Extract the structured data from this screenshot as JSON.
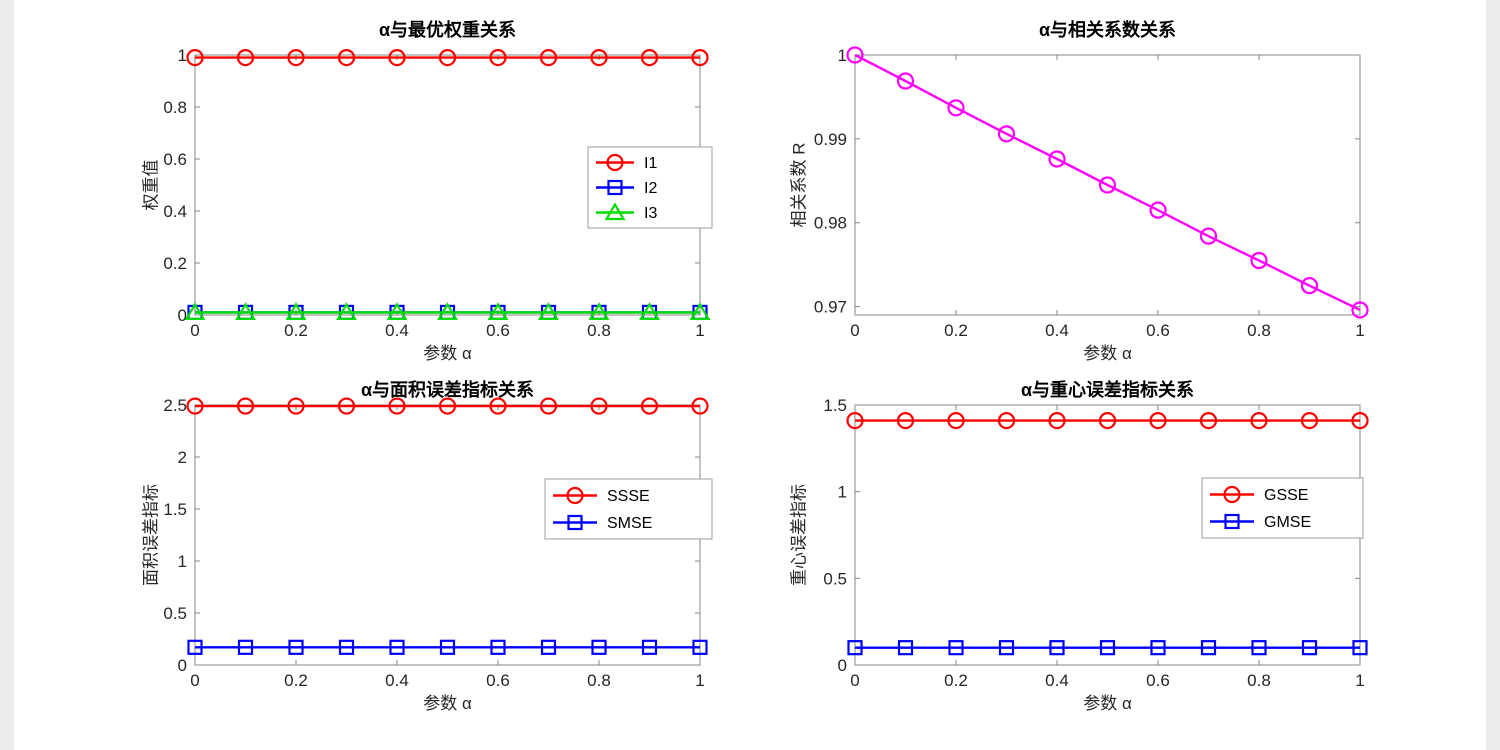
{
  "figure": {
    "background": "#ffffff",
    "edge_color": "#ececec"
  },
  "chart_data": [
    {
      "type": "line",
      "title": "α与最优权重关系",
      "xlabel": "参数 α",
      "ylabel": "权重值",
      "xlim": [
        0,
        1
      ],
      "ylim": [
        0,
        1
      ],
      "xticks": [
        0,
        0.2,
        0.4,
        0.6,
        0.8,
        1
      ],
      "yticks": [
        0,
        0.2,
        0.4,
        0.6,
        0.8,
        1
      ],
      "x": [
        0,
        0.1,
        0.2,
        0.3,
        0.4,
        0.5,
        0.6,
        0.7,
        0.8,
        0.9,
        1
      ],
      "legend_position": "right-center",
      "series": [
        {
          "name": "I1",
          "color": "#ff0000",
          "marker": "circle",
          "values": [
            0.99,
            0.99,
            0.99,
            0.99,
            0.99,
            0.99,
            0.99,
            0.99,
            0.99,
            0.99,
            0.99
          ]
        },
        {
          "name": "I2",
          "color": "#0000ff",
          "marker": "square",
          "values": [
            0.01,
            0.01,
            0.01,
            0.01,
            0.01,
            0.01,
            0.01,
            0.01,
            0.01,
            0.01,
            0.01
          ]
        },
        {
          "name": "I3",
          "color": "#00dd00",
          "marker": "triangle",
          "values": [
            0.01,
            0.01,
            0.01,
            0.01,
            0.01,
            0.01,
            0.01,
            0.01,
            0.01,
            0.01,
            0.01
          ]
        }
      ]
    },
    {
      "type": "line",
      "title": "α与相关系数关系",
      "xlabel": "参数 α",
      "ylabel": "相关系数 R",
      "xlim": [
        0,
        1
      ],
      "ylim": [
        0.969,
        1
      ],
      "xticks": [
        0,
        0.2,
        0.4,
        0.6,
        0.8,
        1
      ],
      "yticks": [
        0.97,
        0.98,
        0.99,
        1
      ],
      "x": [
        0,
        0.1,
        0.2,
        0.3,
        0.4,
        0.5,
        0.6,
        0.7,
        0.8,
        0.9,
        1
      ],
      "legend_position": "none",
      "series": [
        {
          "name": "R",
          "color": "#ff00ff",
          "marker": "circle",
          "values": [
            1,
            0.9969,
            0.9937,
            0.9906,
            0.9876,
            0.9845,
            0.9815,
            0.9784,
            0.9755,
            0.9725,
            0.9696
          ]
        }
      ]
    },
    {
      "type": "line",
      "title": "α与面积误差指标关系",
      "xlabel": "参数 α",
      "ylabel": "面积误差指标",
      "xlim": [
        0,
        1
      ],
      "ylim": [
        0,
        2.5
      ],
      "xticks": [
        0,
        0.2,
        0.4,
        0.6,
        0.8,
        1
      ],
      "yticks": [
        0,
        0.5,
        1,
        1.5,
        2,
        2.5
      ],
      "x": [
        0,
        0.1,
        0.2,
        0.3,
        0.4,
        0.5,
        0.6,
        0.7,
        0.8,
        0.9,
        1
      ],
      "legend_position": "right-center",
      "series": [
        {
          "name": "SSSE",
          "color": "#ff0000",
          "marker": "circle",
          "values": [
            2.49,
            2.49,
            2.49,
            2.49,
            2.49,
            2.49,
            2.49,
            2.49,
            2.49,
            2.49,
            2.49
          ]
        },
        {
          "name": "SMSE",
          "color": "#0000ff",
          "marker": "square",
          "values": [
            0.17,
            0.17,
            0.17,
            0.17,
            0.17,
            0.17,
            0.17,
            0.17,
            0.17,
            0.17,
            0.17
          ]
        }
      ]
    },
    {
      "type": "line",
      "title": "α与重心误差指标关系",
      "xlabel": "参数 α",
      "ylabel": "重心误差指标",
      "xlim": [
        0,
        1
      ],
      "ylim": [
        0,
        1.5
      ],
      "xticks": [
        0,
        0.2,
        0.4,
        0.6,
        0.8,
        1
      ],
      "yticks": [
        0,
        0.5,
        1,
        1.5
      ],
      "x": [
        0,
        0.1,
        0.2,
        0.3,
        0.4,
        0.5,
        0.6,
        0.7,
        0.8,
        0.9,
        1
      ],
      "legend_position": "right-center",
      "series": [
        {
          "name": "GSSE",
          "color": "#ff0000",
          "marker": "circle",
          "values": [
            1.41,
            1.41,
            1.41,
            1.41,
            1.41,
            1.41,
            1.41,
            1.41,
            1.41,
            1.41,
            1.41
          ]
        },
        {
          "name": "GMSE",
          "color": "#0000ff",
          "marker": "square",
          "values": [
            0.1,
            0.1,
            0.1,
            0.1,
            0.1,
            0.1,
            0.1,
            0.1,
            0.1,
            0.1,
            0.1
          ]
        }
      ]
    }
  ]
}
